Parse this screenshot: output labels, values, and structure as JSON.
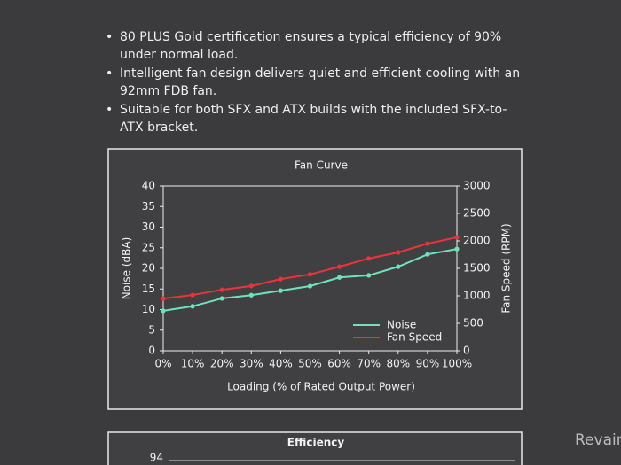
{
  "bullets": [
    "80 PLUS Gold certification ensures a typical efficiency of 90% under normal load.",
    "Intelligent fan design delivers quiet and efficient cooling with an 92mm FDB fan.",
    "Suitable for both SFX and ATX builds with the included SFX-to-ATX bracket."
  ],
  "chart_data": {
    "type": "line",
    "title": "Fan Curve",
    "x_label": "Loading (% of Rated Output Power)",
    "y_label": "Noise (dBA)",
    "y2_label": "Fan Speed (RPM)",
    "categories": [
      "0%",
      "10%",
      "20%",
      "30%",
      "40%",
      "50%",
      "60%",
      "70%",
      "80%",
      "90%",
      "100%"
    ],
    "series": [
      {
        "name": "Noise",
        "color": "#6fe3b8",
        "values": [
          9.7,
          10.8,
          12.7,
          13.5,
          14.6,
          15.7,
          17.8,
          18.3,
          20.4,
          23.4,
          24.7
        ]
      },
      {
        "name": "Fan Speed",
        "color": "#e8353a",
        "axis": "y2",
        "values": [
          950,
          1015,
          1110,
          1180,
          1305,
          1390,
          1530,
          1680,
          1790,
          1950,
          2065
        ]
      }
    ],
    "ylim": [
      0,
      40
    ],
    "yticks": [
      0,
      5,
      10,
      15,
      20,
      25,
      30,
      35,
      40
    ],
    "y2lim": [
      0,
      3000
    ],
    "y2ticks": [
      0,
      500,
      1000,
      1500,
      2000,
      2500,
      3000
    ],
    "legend": "lower right"
  },
  "efficiency_panel": {
    "title": "Efficiency",
    "ytick": "94"
  },
  "watermark": "Revain"
}
